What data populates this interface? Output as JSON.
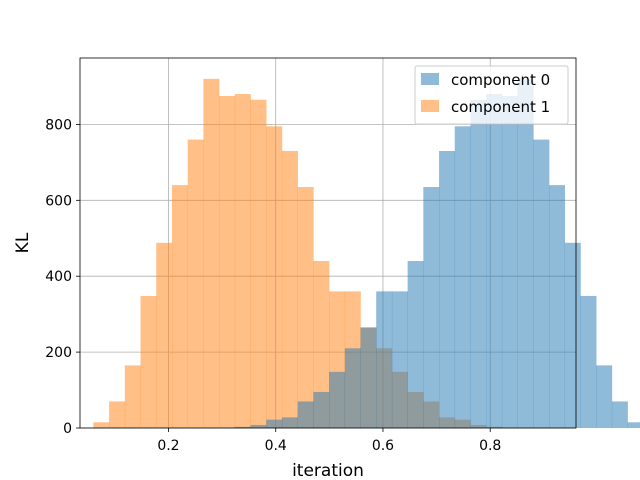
{
  "chart_data": {
    "type": "histogram",
    "title": "",
    "xlabel": "iteration",
    "ylabel": "KL",
    "xlim": [
      0.035,
      0.96
    ],
    "ylim": [
      0,
      975
    ],
    "xticks": [
      0.2,
      0.4,
      0.6,
      0.8
    ],
    "yticks": [
      0,
      200,
      400,
      600,
      800
    ],
    "grid": true,
    "legend": "top-right",
    "series": [
      {
        "name": "component 0",
        "color": "#1f77b4",
        "alpha": 0.5,
        "bin_start": 0.06,
        "bin_width": 0.0293,
        "counts": [
          0,
          0,
          0,
          0,
          0,
          0,
          0,
          0,
          0,
          3,
          8,
          22,
          28,
          70,
          95,
          148,
          210,
          265,
          360,
          360,
          440,
          635,
          730,
          795,
          865,
          880,
          875,
          920,
          760,
          640,
          488,
          348,
          165,
          70,
          15
        ]
      },
      {
        "name": "component 1",
        "color": "#ff7f0e",
        "alpha": 0.5,
        "bin_start": 0.06,
        "bin_width": 0.0293,
        "counts": [
          15,
          70,
          165,
          348,
          488,
          640,
          760,
          920,
          875,
          880,
          865,
          795,
          730,
          635,
          440,
          360,
          360,
          265,
          210,
          148,
          95,
          70,
          28,
          22,
          8,
          3,
          0,
          0,
          0,
          0,
          0,
          0,
          0,
          0,
          0
        ]
      }
    ]
  }
}
